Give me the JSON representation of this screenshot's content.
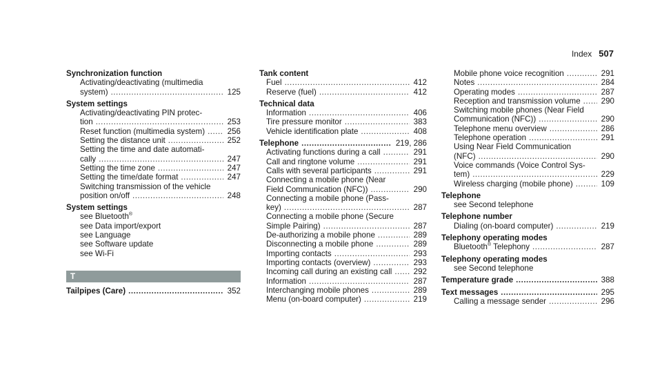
{
  "header": {
    "section": "Index",
    "page_number": "507"
  },
  "columns": [
    [
      {
        "t": "Synchronization function",
        "h": true
      },
      {
        "t": "Activating/deactivating (multimedia"
      },
      {
        "t": "system)",
        "p": "125"
      },
      {
        "t": "System settings",
        "h": true
      },
      {
        "t": "Activating/deactivating PIN protec-"
      },
      {
        "t": "tion",
        "p": "253"
      },
      {
        "t": "Reset function (multimedia system)",
        "p": "256"
      },
      {
        "t": "Setting the distance unit",
        "p": "252"
      },
      {
        "t": "Setting the time and date automati-"
      },
      {
        "t": "cally",
        "p": "247"
      },
      {
        "t": "Setting the time zone",
        "p": "247"
      },
      {
        "t": "Setting the time/date format",
        "p": "247"
      },
      {
        "t": "Switching transmission of the vehicle"
      },
      {
        "t": "position on/off",
        "p": "248"
      },
      {
        "t": "System settings",
        "h": true
      },
      {
        "t": "see Bluetooth",
        "sup": "®"
      },
      {
        "t": "see Data import/export"
      },
      {
        "t": "see Language"
      },
      {
        "t": "see Software update"
      },
      {
        "t": "see Wi-Fi"
      },
      {
        "bar": "T"
      },
      {
        "t": "Tailpipes (Care)",
        "h": true,
        "p": "352"
      }
    ],
    [
      {
        "t": "Tank content",
        "h": true
      },
      {
        "t": "Fuel",
        "p": "412"
      },
      {
        "t": "Reserve (fuel)",
        "p": "412"
      },
      {
        "t": "Technical data",
        "h": true
      },
      {
        "t": "Information",
        "p": "406"
      },
      {
        "t": "Tire pressure monitor",
        "p": "383"
      },
      {
        "t": "Vehicle identification plate",
        "p": "408"
      },
      {
        "t": "Telephone",
        "h": true,
        "p": "219, 286"
      },
      {
        "t": "Activating functions during a call",
        "p": "291"
      },
      {
        "t": "Call and ringtone volume",
        "p": "291"
      },
      {
        "t": "Calls with several participants",
        "p": "291"
      },
      {
        "t": "Connecting a mobile phone (Near"
      },
      {
        "t": "Field Communication (NFC))",
        "p": "290"
      },
      {
        "t": "Connecting a mobile phone (Pass-"
      },
      {
        "t": "key)",
        "p": "287"
      },
      {
        "t": "Connecting a mobile phone (Secure"
      },
      {
        "t": "Simple Pairing)",
        "p": "287"
      },
      {
        "t": "De-authorizing a mobile phone",
        "p": "289"
      },
      {
        "t": "Disconnecting a mobile phone",
        "p": "289"
      },
      {
        "t": "Importing contacts",
        "p": "293"
      },
      {
        "t": "Importing contacts (overview)",
        "p": "293"
      },
      {
        "t": "Incoming call during an existing call",
        "p": "292"
      },
      {
        "t": "Information",
        "p": "287"
      },
      {
        "t": "Interchanging mobile phones",
        "p": "289"
      },
      {
        "t": "Menu (on-board computer)",
        "p": "219"
      }
    ],
    [
      {
        "t": "Mobile phone voice recognition",
        "p": "291"
      },
      {
        "t": "Notes",
        "p": "284"
      },
      {
        "t": "Operating modes",
        "p": "287"
      },
      {
        "t": "Reception and transmission volume",
        "p": "290"
      },
      {
        "t": "Switching mobile phones (Near Field"
      },
      {
        "t": "Communication (NFC))",
        "p": "290"
      },
      {
        "t": "Telephone menu overview",
        "p": "286"
      },
      {
        "t": "Telephone operation",
        "p": "291"
      },
      {
        "t": "Using Near Field Communication"
      },
      {
        "t": "(NFC)",
        "p": "290"
      },
      {
        "t": "Voice commands (Voice Control Sys-"
      },
      {
        "t": "tem)",
        "p": "229"
      },
      {
        "t": "Wireless charging (mobile phone)",
        "p": "109"
      },
      {
        "t": "Telephone",
        "h": true
      },
      {
        "t": "see Second telephone"
      },
      {
        "t": "Telephone number",
        "h": true
      },
      {
        "t": "Dialing (on-board computer)",
        "p": "219"
      },
      {
        "t": "Telephony operating modes",
        "h": true
      },
      {
        "t": "Bluetooth",
        "sup": "®",
        "t2": " Telephony",
        "p": "287"
      },
      {
        "t": "Telephony operating modes",
        "h": true
      },
      {
        "t": "see Second telephone"
      },
      {
        "t": "Temperature grade",
        "h": true,
        "p": "388"
      },
      {
        "t": "Text messages",
        "h": true,
        "p": "295"
      },
      {
        "t": "Calling a message sender",
        "p": "296"
      }
    ]
  ]
}
